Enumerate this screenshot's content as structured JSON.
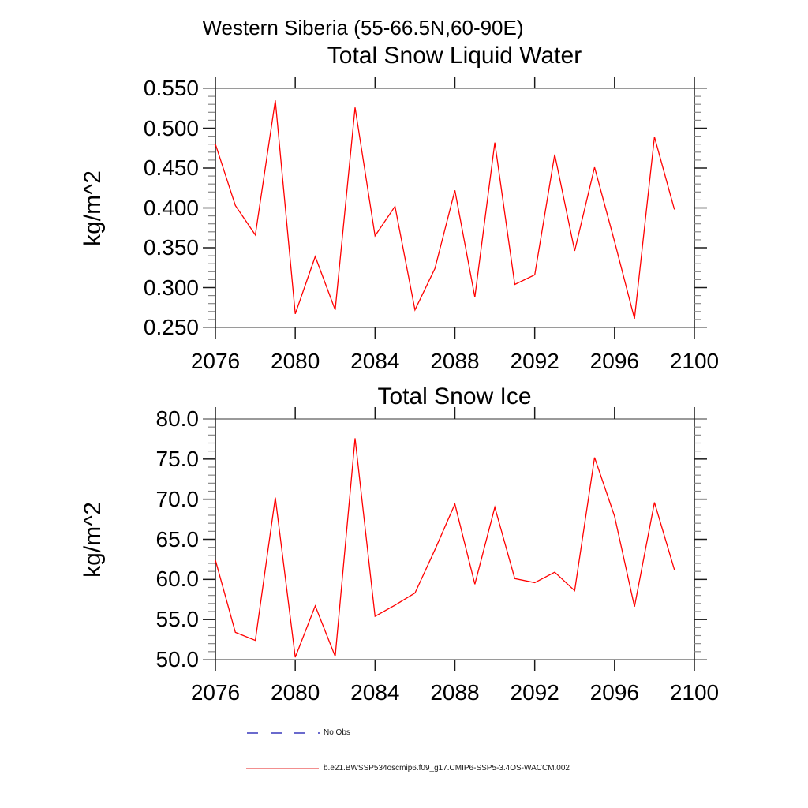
{
  "header": {
    "main_title": "Western Siberia (55-66.5N,60-90E)"
  },
  "chart_data": [
    {
      "type": "line",
      "title": "Total Snow Liquid Water",
      "ylabel": "kg/m^2",
      "xlabel": "",
      "legend_position": "bottom-left",
      "grid": false,
      "xlim": [
        2076,
        2100
      ],
      "ylim": [
        0.25,
        0.55
      ],
      "x_ticks": [
        2076,
        2080,
        2084,
        2088,
        2092,
        2096,
        2100
      ],
      "x_tick_labels": [
        "2076",
        "2080",
        "2084",
        "2088",
        "2092",
        "2096",
        "2100"
      ],
      "y_ticks": [
        0.25,
        0.3,
        0.35,
        0.4,
        0.45,
        0.5,
        0.55
      ],
      "y_tick_labels": [
        "0.250",
        "0.300",
        "0.350",
        "0.400",
        "0.450",
        "0.500",
        "0.550"
      ],
      "y_minor_step": 0.01,
      "line_color": "#ff0000",
      "x": [
        2076,
        2077,
        2078,
        2079,
        2080,
        2081,
        2082,
        2083,
        2084,
        2085,
        2086,
        2087,
        2088,
        2089,
        2090,
        2091,
        2092,
        2093,
        2094,
        2095,
        2096,
        2097,
        2098,
        2099
      ],
      "values": [
        0.48,
        0.403,
        0.366,
        0.535,
        0.267,
        0.339,
        0.272,
        0.526,
        0.365,
        0.402,
        0.272,
        0.324,
        0.422,
        0.288,
        0.482,
        0.304,
        0.316,
        0.467,
        0.346,
        0.451,
        0.358,
        0.261,
        0.489,
        0.398
      ]
    },
    {
      "type": "line",
      "title": "Total Snow Ice",
      "ylabel": "kg/m^2",
      "xlabel": "",
      "legend_position": "bottom-left",
      "grid": false,
      "xlim": [
        2076,
        2100
      ],
      "ylim": [
        50.0,
        80.0
      ],
      "x_ticks": [
        2076,
        2080,
        2084,
        2088,
        2092,
        2096,
        2100
      ],
      "x_tick_labels": [
        "2076",
        "2080",
        "2084",
        "2088",
        "2092",
        "2096",
        "2100"
      ],
      "y_ticks": [
        50.0,
        55.0,
        60.0,
        65.0,
        70.0,
        75.0,
        80.0
      ],
      "y_tick_labels": [
        "50.0",
        "55.0",
        "60.0",
        "65.0",
        "70.0",
        "75.0",
        "80.0"
      ],
      "y_minor_step": 1.0,
      "line_color": "#ff0000",
      "x": [
        2076,
        2077,
        2078,
        2079,
        2080,
        2081,
        2082,
        2083,
        2084,
        2085,
        2086,
        2087,
        2088,
        2089,
        2090,
        2091,
        2092,
        2093,
        2094,
        2095,
        2096,
        2097,
        2098,
        2099
      ],
      "values": [
        62.4,
        53.4,
        52.4,
        70.2,
        50.3,
        56.7,
        50.4,
        77.6,
        55.4,
        56.8,
        58.3,
        63.7,
        69.4,
        59.4,
        69.0,
        60.1,
        59.6,
        60.9,
        58.6,
        75.2,
        67.9,
        56.6,
        69.6,
        61.2
      ]
    }
  ],
  "legend": {
    "items": [
      {
        "label": "No Obs",
        "color": "#6a6acd",
        "style": "dashed"
      },
      {
        "label": "b.e21.BWSSP534oscmip6.f09_g17.CMIP6-SSP5-3.4OS-WACCM.002",
        "color": "#ee6a6a",
        "style": "solid"
      }
    ]
  },
  "colors": {
    "background": "#ffffff",
    "axis": "#1a1a1a",
    "frame": "#787878",
    "minor_tick": "#888888",
    "text": "#000000"
  }
}
